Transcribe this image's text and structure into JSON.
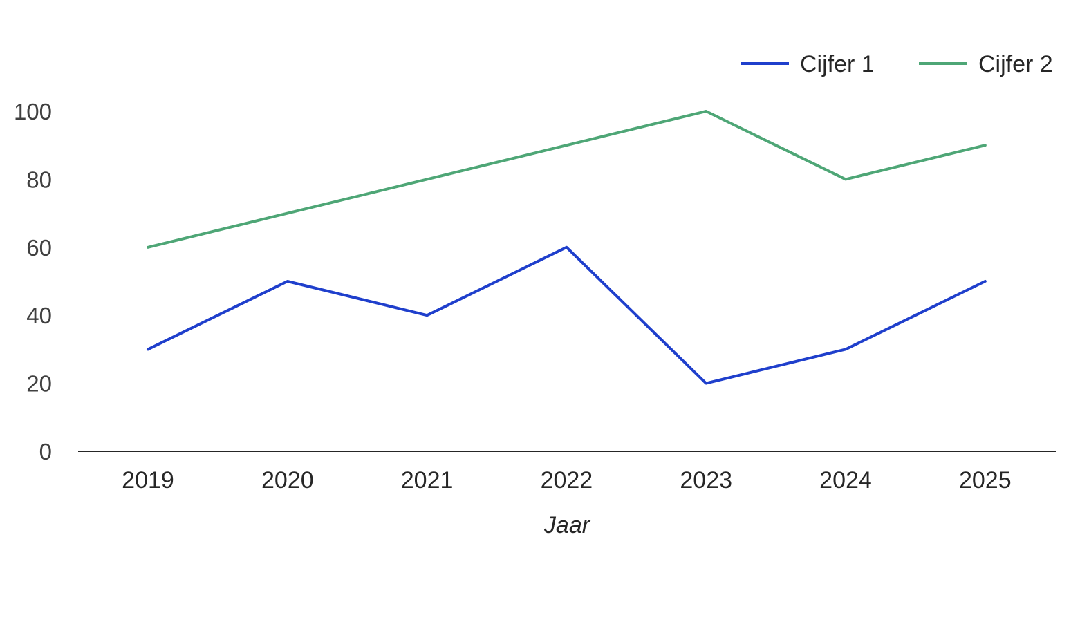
{
  "chart_data": {
    "type": "line",
    "title": "",
    "xlabel": "Jaar",
    "ylabel": "",
    "categories": [
      "2019",
      "2020",
      "2021",
      "2022",
      "2023",
      "2024",
      "2025"
    ],
    "ylim": [
      0,
      100
    ],
    "yticks": [
      0,
      20,
      40,
      60,
      80,
      100
    ],
    "grid": false,
    "legend_position": "top-right",
    "series": [
      {
        "name": "Cijfer 1",
        "color": "#1f3fcc",
        "values": [
          30,
          50,
          40,
          60,
          20,
          30,
          50
        ]
      },
      {
        "name": "Cijfer 2",
        "color": "#4ea676",
        "values": [
          60,
          70,
          80,
          90,
          100,
          80,
          90
        ]
      }
    ]
  }
}
